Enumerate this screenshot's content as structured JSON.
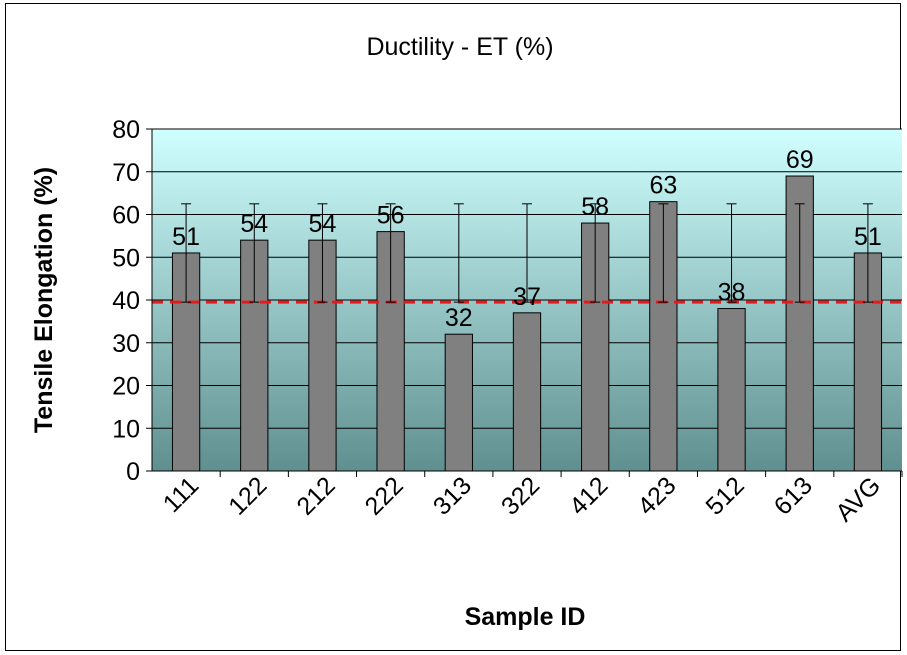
{
  "chart_data": {
    "type": "bar",
    "title": "Ductility - ET (%)",
    "xlabel": "Sample ID",
    "ylabel": "Tensile Elongation (%)",
    "ylim": [
      0,
      80
    ],
    "yticks": [
      "0",
      "10",
      "20",
      "30",
      "40",
      "50",
      "60",
      "70",
      "80"
    ],
    "grid": true,
    "legend": "none",
    "categories": [
      "111",
      "122",
      "212",
      "222",
      "313",
      "322",
      "412",
      "423",
      "512",
      "613",
      "AVG"
    ],
    "values": [
      51,
      54,
      54,
      56,
      32,
      37,
      58,
      63,
      38,
      69,
      51
    ],
    "data_labels": [
      "51",
      "54",
      "54",
      "56",
      "32",
      "37",
      "58",
      "63",
      "38",
      "69",
      "51"
    ],
    "error_bars": {
      "lower": 39.5,
      "upper": 62.5
    },
    "reference_line": {
      "value": 39.5,
      "style": "dashed",
      "color": "#e8191c"
    },
    "colors": {
      "bar": "#808080",
      "plot_top": "#d0ffff",
      "plot_bottom": "#5f8f8f",
      "gridline": "#000000"
    }
  }
}
